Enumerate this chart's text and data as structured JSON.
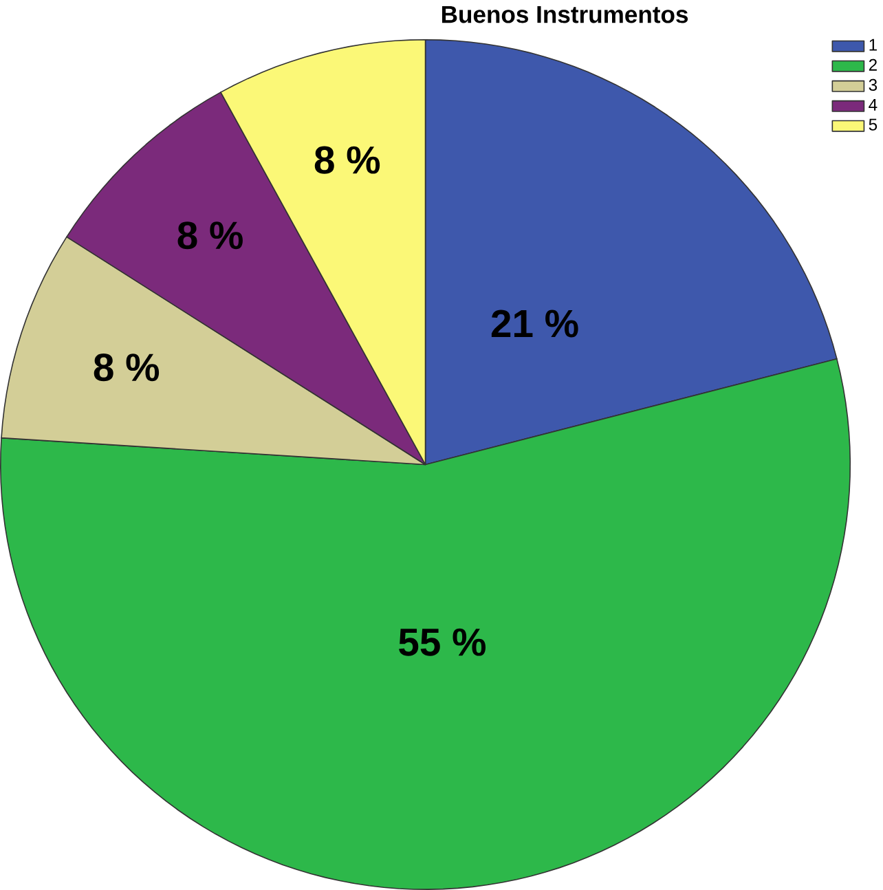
{
  "chart_data": {
    "type": "pie",
    "title": "Buenos Instrumentos",
    "categories": [
      "1",
      "2",
      "3",
      "4",
      "5"
    ],
    "values": [
      21,
      55,
      8,
      8,
      8
    ],
    "colors": [
      "#3e58ac",
      "#2db84a",
      "#d3ce97",
      "#7b2a7b",
      "#fbf877"
    ],
    "value_labels": [
      "21 %",
      "55 %",
      "8 %",
      "8 %",
      "8 %"
    ],
    "legend": "top right"
  }
}
